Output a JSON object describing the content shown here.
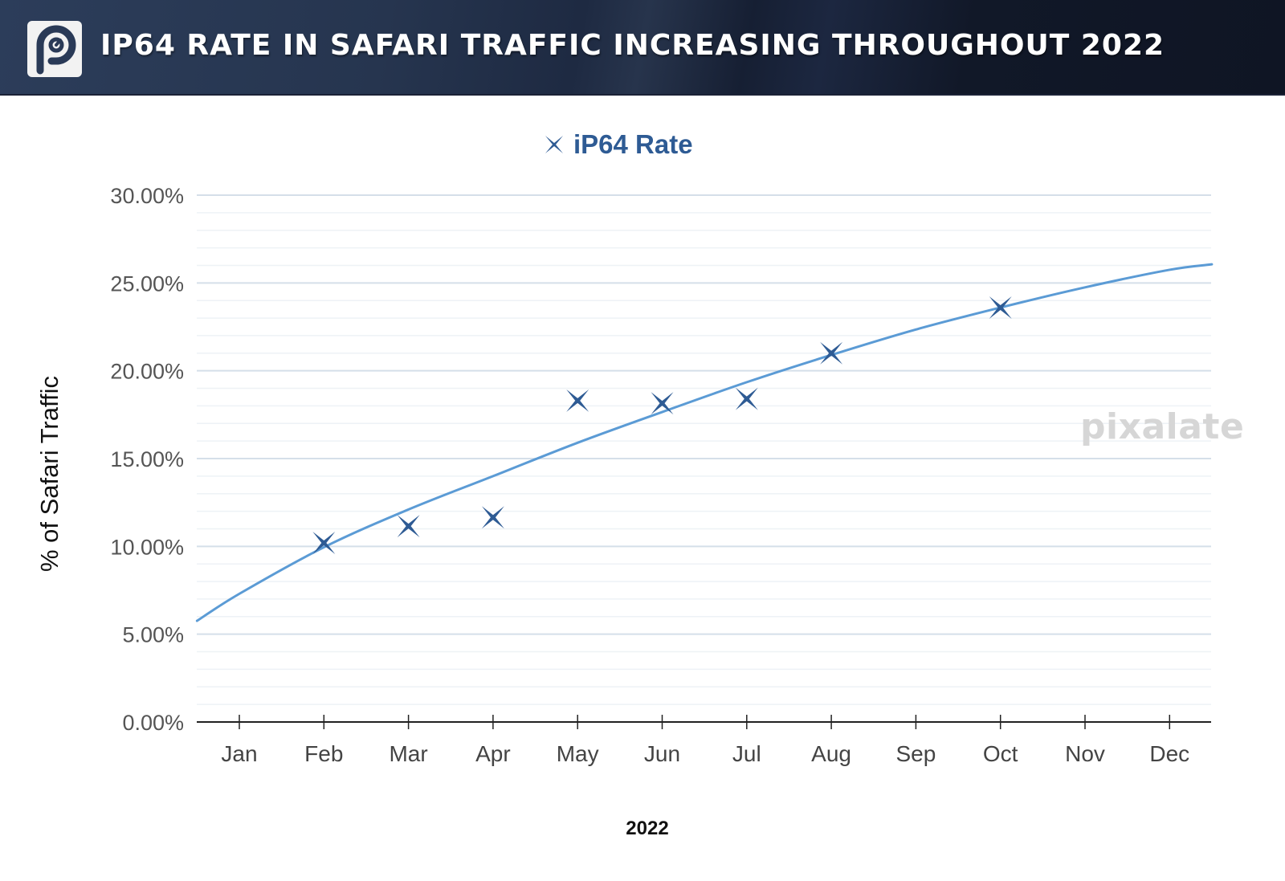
{
  "header": {
    "title": "IP64 RATE IN SAFARI TRAFFIC INCREASING THROUGHOUT 2022",
    "logo_icon": "pixalate-p-logo-icon"
  },
  "watermark": "pixalate",
  "colors": {
    "marker": "#2e5b94",
    "trendline": "#5b9bd5",
    "grid_major": "#d5dfe9",
    "grid_minor": "#eef2f6",
    "axis": "#222222"
  },
  "chart_data": {
    "type": "scatter",
    "title": "IP64 RATE IN SAFARI TRAFFIC INCREASING THROUGHOUT 2022",
    "xlabel": "2022",
    "ylabel": "% of Safari Traffic",
    "categories": [
      "Jan",
      "Feb",
      "Mar",
      "Apr",
      "May",
      "Jun",
      "Jul",
      "Aug",
      "Sep",
      "Oct",
      "Nov",
      "Dec"
    ],
    "ylim": [
      0,
      30
    ],
    "yticks": [
      0,
      5,
      10,
      15,
      20,
      25,
      30
    ],
    "ytick_labels": [
      "0.00%",
      "5.00%",
      "10.00%",
      "15.00%",
      "20.00%",
      "25.00%",
      "30.00%"
    ],
    "minor_grid_step": 1,
    "grid": true,
    "legend": {
      "position": "top-center",
      "entries": [
        {
          "name": "iP64 Rate",
          "marker": "star-x"
        }
      ]
    },
    "series": [
      {
        "name": "iP64 Rate",
        "points": [
          {
            "x": "Feb",
            "y": 10.2
          },
          {
            "x": "Mar",
            "y": 11.15
          },
          {
            "x": "Apr",
            "y": 11.65
          },
          {
            "x": "May",
            "y": 18.3
          },
          {
            "x": "Jun",
            "y": 18.15
          },
          {
            "x": "Jul",
            "y": 18.4
          },
          {
            "x": "Aug",
            "y": 21.0
          },
          {
            "x": "Oct",
            "y": 23.6
          }
        ]
      }
    ],
    "trendline": {
      "type": "logarithmic-curve",
      "points": [
        {
          "x": 0.5,
          "y": 5.76
        },
        {
          "x": 1,
          "y": 7.3
        },
        {
          "x": 2,
          "y": 9.95
        },
        {
          "x": 3,
          "y": 12.1
        },
        {
          "x": 4,
          "y": 14.0
        },
        {
          "x": 5,
          "y": 15.9
        },
        {
          "x": 6,
          "y": 17.65
        },
        {
          "x": 7,
          "y": 19.35
        },
        {
          "x": 8,
          "y": 20.9
        },
        {
          "x": 9,
          "y": 22.35
        },
        {
          "x": 10,
          "y": 23.6
        },
        {
          "x": 11,
          "y": 24.75
        },
        {
          "x": 12,
          "y": 25.75
        },
        {
          "x": 12.5,
          "y": 26.06
        }
      ]
    }
  }
}
